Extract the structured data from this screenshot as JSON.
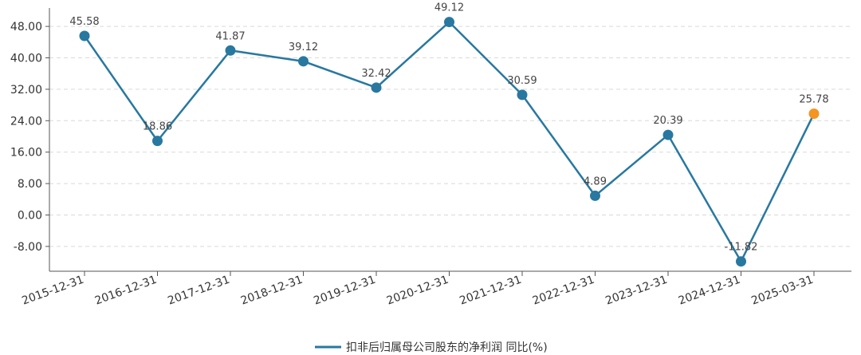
{
  "chart_data": {
    "type": "line",
    "categories": [
      "2015-12-31",
      "2016-12-31",
      "2017-12-31",
      "2018-12-31",
      "2019-12-31",
      "2020-12-31",
      "2021-12-31",
      "2022-12-31",
      "2023-12-31",
      "2024-12-31",
      "2025-03-31"
    ],
    "series": [
      {
        "name": "扣非后归属母公司股东的净利润 同比(%)",
        "values": [
          45.58,
          18.86,
          41.87,
          39.12,
          32.42,
          49.12,
          30.59,
          4.89,
          20.39,
          -11.82,
          25.78
        ],
        "data_labels": [
          "45.58",
          "18.86",
          "41.87",
          "39.12",
          "32.42",
          "49.12",
          "30.59",
          "4.89",
          "20.39",
          "-11.82",
          "25.78"
        ],
        "color": "#2878a0",
        "highlight_last_color": "#f39423"
      }
    ],
    "yticks": [
      -8,
      0,
      8,
      16,
      24,
      32,
      40,
      48
    ],
    "ytick_labels": [
      "-8.00",
      "0.00",
      "8.00",
      "16.00",
      "24.00",
      "32.00",
      "40.00",
      "48.00"
    ],
    "ylim": [
      -15,
      52
    ],
    "grid": true,
    "legend_position": "bottom-center",
    "title": "",
    "xlabel": "",
    "ylabel": ""
  }
}
